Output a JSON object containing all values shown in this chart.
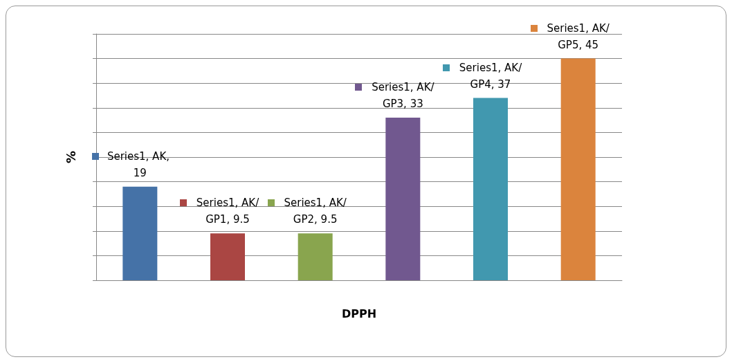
{
  "chart_data": {
    "type": "bar",
    "xlabel": "DPPH",
    "ylabel": "%",
    "categories": [
      null,
      null,
      null,
      null,
      null,
      null
    ],
    "series": [
      {
        "values": [
          19,
          9.5,
          9.5,
          33,
          37,
          45
        ],
        "colors": [
          "#4572a7",
          "#aa4643",
          "#89a54e",
          "#71588f",
          "#4198af",
          "#db843d"
        ],
        "value_labels": [
          "Series1, AK, 19",
          "Series1, AK/GP1, 9.5",
          "Series1, AK/GP2, 9.5",
          "Series1, AK/GP3, 33",
          "Series1, AK/GP4, 37",
          "Series1, AK/GP5, 45"
        ]
      }
    ],
    "ylim": [
      0,
      50
    ],
    "yticks": [
      {
        "value": 0,
        "label": null
      },
      {
        "value": 5,
        "label": null
      },
      {
        "value": 10,
        "label": null
      },
      {
        "value": 15,
        "label": null
      },
      {
        "value": 20,
        "label": null
      },
      {
        "value": 25,
        "label": null
      },
      {
        "value": 30,
        "label": null
      },
      {
        "value": 35,
        "label": null
      },
      {
        "value": 40,
        "label": null
      },
      {
        "value": 45,
        "label": null
      },
      {
        "value": 50,
        "label": null
      }
    ],
    "grid": "y"
  }
}
